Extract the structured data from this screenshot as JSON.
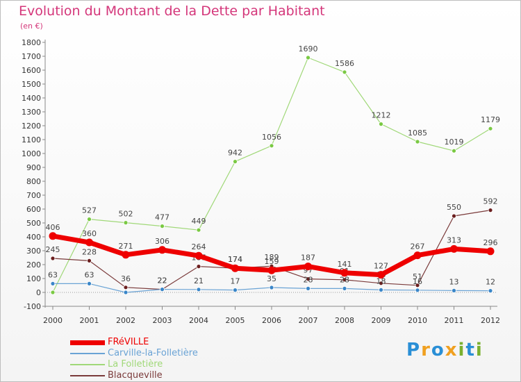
{
  "header": {
    "title": "Evolution du Montant de la Dette par Habitant",
    "subtitle": "(en €)"
  },
  "brand": {
    "letters": [
      "P",
      "r",
      "o",
      "x",
      "i",
      "t",
      "i"
    ],
    "colors": [
      "#2a8fd6",
      "#f0a020",
      "#2a8fd6",
      "#f0a020",
      "#7ab030",
      "#2a8fd6",
      "#7ab030"
    ]
  },
  "chart_data": {
    "type": "line",
    "x": [
      "2000",
      "2001",
      "2002",
      "2003",
      "2004",
      "2005",
      "2006",
      "2007",
      "2008",
      "2009",
      "2010",
      "2011",
      "2012"
    ],
    "ylim": [
      -100,
      1800
    ],
    "yticks": [
      "-100",
      "0",
      "100",
      "200",
      "300",
      "400",
      "500",
      "600",
      "700",
      "800",
      "900",
      "1000",
      "1100",
      "1200",
      "1300",
      "1400",
      "1500",
      "1600",
      "1700",
      "1800"
    ],
    "grid": false,
    "legend_position": "bottom-left",
    "series": [
      {
        "name": "La Folletière",
        "color": "#a0d878",
        "dot": "#7ac943",
        "width": 1.2,
        "values": [
          0,
          527,
          502,
          477,
          449,
          942,
          1056,
          1690,
          1586,
          1212,
          1085,
          1019,
          1179
        ],
        "labels": [
          "",
          "527",
          "502",
          "477",
          "449",
          "942",
          "1056",
          "1690",
          "1586",
          "1212",
          "1085",
          "1019",
          "1179"
        ]
      },
      {
        "name": "Blacqueville",
        "color": "#7a3a3a",
        "dot": "#6b1f1f",
        "width": 1.2,
        "values": [
          245,
          228,
          36,
          22,
          187,
          174,
          189,
          97,
          91,
          66,
          51,
          550,
          592
        ],
        "labels": [
          "245",
          "228",
          "36",
          "22",
          "187",
          "174",
          "189",
          "97",
          "91",
          "66",
          "51",
          "550",
          "592"
        ]
      },
      {
        "name": "Carville-la-Folletière",
        "color": "#6aa3d5",
        "dot": "#3a86c8",
        "width": 1.2,
        "values": [
          63,
          63,
          0,
          22,
          21,
          17,
          35,
          28,
          28,
          18,
          16,
          13,
          12
        ],
        "labels": [
          "63",
          "63",
          "",
          "22",
          "21",
          "17",
          "35",
          "28",
          "28",
          "18",
          "16",
          "13",
          "12"
        ]
      },
      {
        "name": "FRéVILLE",
        "color": "#ee0000",
        "dot": "#ee0000",
        "width": 7,
        "values": [
          406,
          360,
          271,
          306,
          264,
          174,
          159,
          187,
          141,
          127,
          267,
          313,
          296
        ],
        "labels": [
          "406",
          "360",
          "271",
          "306",
          "264",
          "174",
          "159",
          "187",
          "141",
          "127",
          "267",
          "313",
          "296"
        ]
      }
    ]
  },
  "legend": [
    {
      "label": "FRéVILLE",
      "color": "#ee0000",
      "thick": true
    },
    {
      "label": "Carville-la-Folletière",
      "color": "#6aa3d5",
      "thick": false
    },
    {
      "label": "La Folletière",
      "color": "#a0d878",
      "thick": false
    },
    {
      "label": "Blacqueville",
      "color": "#7a3a3a",
      "thick": false
    }
  ]
}
